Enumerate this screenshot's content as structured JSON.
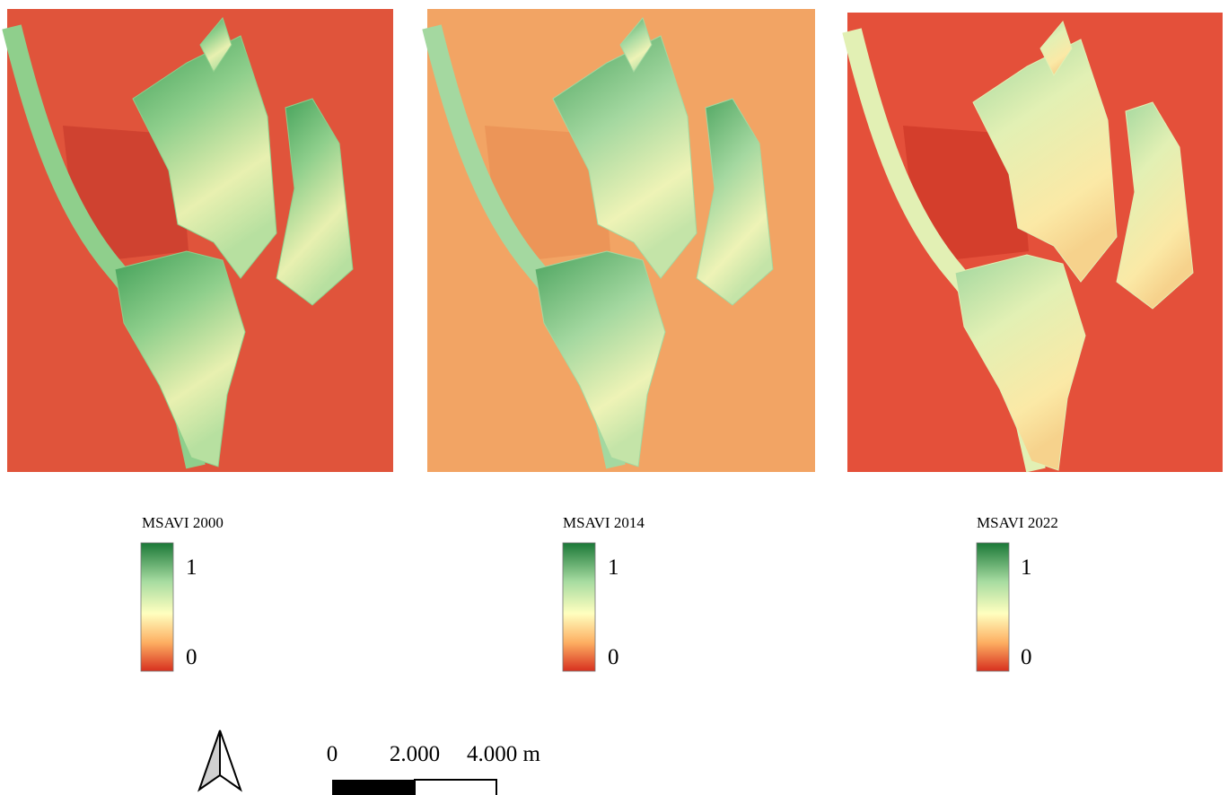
{
  "panels": [
    {
      "legend": {
        "title": "MSAVI 2000",
        "max": 1,
        "min": 0
      }
    },
    {
      "legend": {
        "title": "MSAVI 2014",
        "max": 1,
        "min": 0
      }
    },
    {
      "legend": {
        "title": "MSAVI 2022",
        "max": 1,
        "min": 0
      }
    }
  ],
  "scale_bar": {
    "labels": [
      "0",
      "2.000",
      "4.000 m"
    ]
  }
}
